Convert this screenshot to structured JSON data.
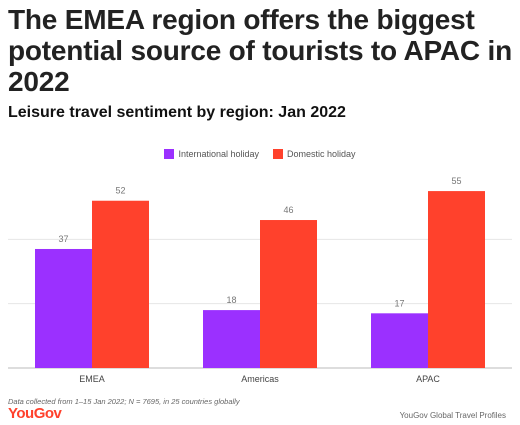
{
  "title": "The EMEA region offers the biggest potential source of tourists to APAC in 2022",
  "subtitle": "Leisure travel sentiment by region: Jan 2022",
  "footnote": "Data collected from 1–15 Jan 2022; N = 7695, in 25 countries globally",
  "brand": "YouGov",
  "source": "YouGov Global Travel Profiles",
  "chart_data": {
    "type": "bar",
    "categories": [
      "EMEA",
      "Americas",
      "APAC"
    ],
    "series": [
      {
        "name": "International holiday",
        "color": "#9b30ff",
        "values": [
          37,
          18,
          17
        ]
      },
      {
        "name": "Domestic holiday",
        "color": "#ff412c",
        "values": [
          52,
          46,
          55
        ]
      }
    ],
    "ylim": [
      0,
      60
    ],
    "yticks": [
      0,
      20,
      40
    ],
    "grid": true,
    "legend": "top-center",
    "data_labels": true
  }
}
